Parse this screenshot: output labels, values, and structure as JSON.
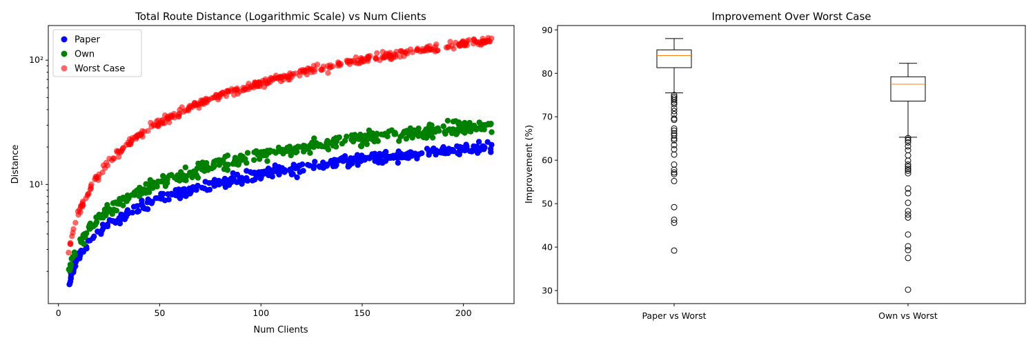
{
  "chart_data": [
    {
      "type": "scatter",
      "title": "Total Route Distance (Logarithmic Scale) vs Num Clients",
      "xlabel": "Num Clients",
      "ylabel": "Distance",
      "yscale": "log",
      "xlim": [
        -5,
        225
      ],
      "ylim": [
        1.1,
        190
      ],
      "xticks": [
        0,
        50,
        100,
        150,
        200
      ],
      "xtick_labels": [
        "0",
        "50",
        "100",
        "150",
        "200"
      ],
      "yticks": [
        10,
        100
      ],
      "ytick_labels": [
        "10¹",
        "10²"
      ],
      "legend_position": "top-left",
      "series": [
        {
          "name": "Paper",
          "color": "#0000ff",
          "opacity": 1.0,
          "model": {
            "a": 0.55,
            "b": 0.67,
            "noise": 0.09
          }
        },
        {
          "name": "Own",
          "color": "#008000",
          "opacity": 1.0,
          "model": {
            "a": 0.6,
            "b": 0.73,
            "noise": 0.1
          }
        },
        {
          "name": "Worst Case",
          "color": "#ff0000",
          "opacity": 0.6,
          "model": {
            "a": 0.52,
            "b": 1.05,
            "noise": 0.06
          }
        }
      ],
      "x_range": [
        5,
        214
      ],
      "points_per_series": 420
    },
    {
      "type": "box",
      "title": "Improvement Over Worst Case",
      "xlabel": "",
      "ylabel": "Improvement (%)",
      "ylim": [
        27,
        91
      ],
      "yticks": [
        30,
        40,
        50,
        60,
        70,
        80,
        90
      ],
      "categories": [
        "Paper vs Worst",
        "Own vs Worst"
      ],
      "boxes": [
        {
          "label": "Paper vs Worst",
          "whisker_low": 75.5,
          "q1": 81.3,
          "median": 84.1,
          "q3": 85.4,
          "whisker_high": 88.0,
          "outliers": [
            75.0,
            74.6,
            74.2,
            73.8,
            73.3,
            72.9,
            72.0,
            71.3,
            70.6,
            69.6,
            69.3,
            67.3,
            66.8,
            66.2,
            65.7,
            65.0,
            64.6,
            63.5,
            62.5,
            61.3,
            59.0,
            57.8,
            57.2,
            56.8,
            55.2,
            49.2,
            46.3,
            45.6,
            39.2
          ]
        },
        {
          "label": "Own vs Worst",
          "whisker_low": 65.3,
          "q1": 73.6,
          "median": 77.5,
          "q3": 79.2,
          "whisker_high": 82.3,
          "outliers": [
            65.1,
            64.6,
            64.1,
            63.2,
            62.3,
            61.1,
            59.9,
            59.0,
            58.5,
            58.0,
            57.6,
            57.0,
            53.5,
            52.4,
            50.2,
            48.3,
            47.5,
            46.8,
            42.9,
            40.2,
            39.3,
            37.5,
            30.2
          ]
        }
      ],
      "median_color": "#ff7f0e"
    }
  ]
}
